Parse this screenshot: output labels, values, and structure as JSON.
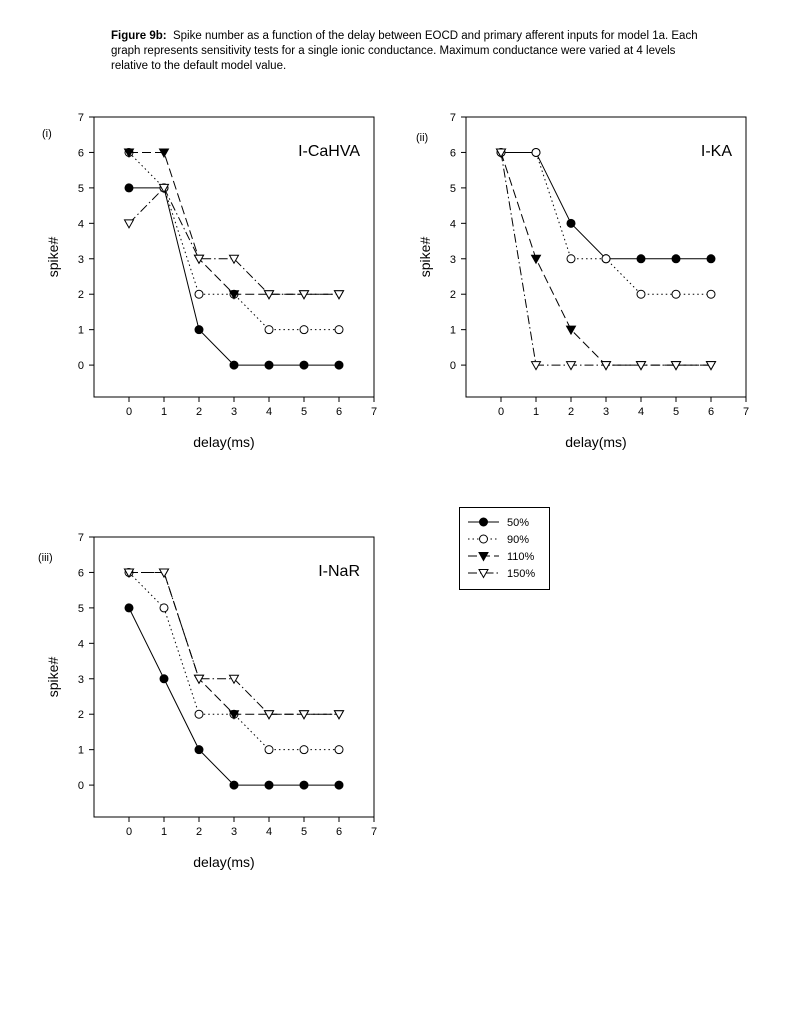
{
  "caption": {
    "label": "Figure 9b:",
    "text": "Spike number as a function of the delay between EOCD and primary afferent inputs for model 1a. Each graph represents sensitivity tests for a single ionic conductance. Maximum conductance were varied at 4 levels relative to the default model value."
  },
  "legend": {
    "entries": [
      "50%",
      "90%",
      "110%",
      "150%"
    ]
  },
  "chart_data": [
    {
      "type": "line",
      "panel_label": "(i)",
      "title": "I-CaHVA",
      "xlabel": "delay(ms)",
      "ylabel": "spike#",
      "xlim": [
        -1,
        7
      ],
      "ylim": [
        -0.9,
        7
      ],
      "xticks": [
        0,
        1,
        2,
        3,
        4,
        5,
        6,
        7
      ],
      "yticks": [
        0,
        1,
        2,
        3,
        4,
        5,
        6,
        7
      ],
      "x": [
        0,
        1,
        2,
        3,
        4,
        5,
        6
      ],
      "series": [
        {
          "name": "50%",
          "values": [
            5,
            5,
            1,
            0,
            0,
            0,
            0
          ]
        },
        {
          "name": "90%",
          "values": [
            6,
            5,
            2,
            2,
            1,
            1,
            1
          ]
        },
        {
          "name": "110%",
          "values": [
            6,
            6,
            3,
            2,
            2,
            2,
            2
          ]
        },
        {
          "name": "150%",
          "values": [
            4,
            5,
            3,
            3,
            2,
            2,
            2
          ]
        }
      ]
    },
    {
      "type": "line",
      "panel_label": "(ii)",
      "title": "I-KA",
      "xlabel": "delay(ms)",
      "ylabel": "spike#",
      "xlim": [
        -1,
        7
      ],
      "ylim": [
        -0.9,
        7
      ],
      "xticks": [
        0,
        1,
        2,
        3,
        4,
        5,
        6,
        7
      ],
      "yticks": [
        0,
        1,
        2,
        3,
        4,
        5,
        6,
        7
      ],
      "x": [
        0,
        1,
        2,
        3,
        4,
        5,
        6
      ],
      "series": [
        {
          "name": "50%",
          "values": [
            6,
            6,
            4,
            3,
            3,
            3,
            3
          ]
        },
        {
          "name": "90%",
          "values": [
            6,
            6,
            3,
            3,
            2,
            2,
            2
          ]
        },
        {
          "name": "110%",
          "values": [
            6,
            3,
            1,
            0,
            0,
            0,
            0
          ]
        },
        {
          "name": "150%",
          "values": [
            6,
            0,
            0,
            0,
            0,
            0,
            0
          ]
        }
      ]
    },
    {
      "type": "line",
      "panel_label": "(iii)",
      "title": "I-NaR",
      "xlabel": "delay(ms)",
      "ylabel": "spike#",
      "xlim": [
        -1,
        7
      ],
      "ylim": [
        -0.9,
        7
      ],
      "xticks": [
        0,
        1,
        2,
        3,
        4,
        5,
        6,
        7
      ],
      "yticks": [
        0,
        1,
        2,
        3,
        4,
        5,
        6,
        7
      ],
      "x": [
        0,
        1,
        2,
        3,
        4,
        5,
        6
      ],
      "series": [
        {
          "name": "50%",
          "values": [
            5,
            3,
            1,
            0,
            0,
            0,
            0
          ]
        },
        {
          "name": "90%",
          "values": [
            6,
            5,
            2,
            2,
            1,
            1,
            1
          ]
        },
        {
          "name": "110%",
          "values": [
            6,
            6,
            3,
            2,
            2,
            2,
            2
          ]
        },
        {
          "name": "150%",
          "values": [
            6,
            6,
            3,
            3,
            2,
            2,
            2
          ]
        }
      ]
    }
  ]
}
